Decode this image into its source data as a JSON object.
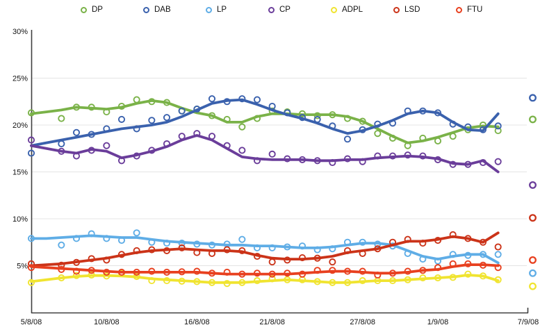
{
  "chart_data": {
    "type": "line",
    "title": "",
    "xlabel": "",
    "ylabel": "",
    "y_unit": "%",
    "ylim": [
      0,
      30
    ],
    "y_ticks": [
      30,
      25,
      20,
      15,
      10,
      5
    ],
    "grid": true,
    "grid_ticks": [
      25,
      20,
      15,
      10,
      5
    ],
    "legend_position": "top",
    "x_axis": {
      "tick_labels": [
        "5/8/08",
        "10/8/08",
        "16/8/08",
        "21/8/08",
        "27/8/08",
        "1/9/08",
        "7/9/08"
      ],
      "tick_days": [
        0,
        5,
        11,
        16,
        22,
        27,
        33
      ],
      "range_days": [
        0,
        33
      ],
      "final_point_day": 33.3
    },
    "marker_style": "hollow-circle",
    "series": [
      {
        "name": "DP",
        "color": "#7ab248",
        "polls": [
          21.3,
          null,
          20.7,
          21.9,
          21.9,
          21.4,
          22.0,
          22.7,
          22.5,
          22.4,
          21.5,
          21.7,
          21.0,
          20.6,
          19.8,
          20.7,
          21.5,
          21.4,
          21.2,
          21.0,
          21.1,
          20.7,
          20.4,
          19.1,
          18.6,
          17.8,
          18.6,
          18.3,
          18.8,
          19.5,
          20.0,
          19.4
        ],
        "trend": [
          21.2,
          21.4,
          21.6,
          21.9,
          21.8,
          21.7,
          21.9,
          22.3,
          22.6,
          22.4,
          21.8,
          21.3,
          21.0,
          20.3,
          20.3,
          20.9,
          21.2,
          21.2,
          21.1,
          21.1,
          21.1,
          20.9,
          20.4,
          19.6,
          18.8,
          18.1,
          18.3,
          18.7,
          19.2,
          19.7,
          19.9,
          19.8
        ],
        "final": 20.6
      },
      {
        "name": "DAB",
        "color": "#3a61ad",
        "polls": [
          17.0,
          null,
          18.0,
          19.2,
          19.0,
          19.6,
          20.6,
          19.6,
          20.5,
          20.8,
          21.5,
          21.7,
          22.8,
          22.5,
          22.8,
          22.7,
          22.0,
          21.3,
          20.8,
          20.6,
          19.9,
          18.5,
          19.5,
          20.1,
          20.2,
          21.5,
          21.5,
          21.3,
          20.1,
          19.8,
          19.5,
          19.9
        ],
        "trend": [
          17.8,
          18.1,
          18.4,
          18.7,
          19.0,
          19.3,
          19.6,
          19.8,
          20.0,
          20.3,
          20.9,
          21.6,
          22.3,
          22.6,
          22.7,
          22.2,
          21.6,
          21.1,
          20.7,
          20.2,
          19.6,
          19.1,
          19.4,
          19.9,
          20.5,
          21.2,
          21.5,
          21.3,
          20.3,
          19.5,
          19.4,
          21.2
        ],
        "final": 22.9
      },
      {
        "name": "LP",
        "color": "#5fade6",
        "polls": [
          7.9,
          null,
          7.2,
          7.9,
          8.4,
          7.9,
          7.7,
          8.5,
          7.5,
          7.4,
          7.4,
          7.3,
          7.2,
          7.3,
          7.8,
          6.9,
          6.9,
          7.0,
          7.1,
          6.7,
          6.8,
          7.5,
          7.5,
          7.3,
          7.1,
          6.3,
          5.7,
          5.5,
          6.2,
          6.1,
          6.2,
          6.2
        ],
        "trend": [
          7.9,
          7.9,
          8.0,
          8.1,
          8.2,
          8.1,
          8.0,
          8.0,
          7.8,
          7.6,
          7.5,
          7.4,
          7.3,
          7.2,
          7.2,
          7.1,
          7.1,
          7.0,
          6.9,
          6.9,
          7.0,
          7.2,
          7.4,
          7.4,
          7.2,
          6.6,
          6.0,
          5.7,
          6.0,
          6.2,
          6.2,
          5.3
        ],
        "final": 4.2
      },
      {
        "name": "CP",
        "color": "#6a3d9a",
        "polls": [
          18.4,
          null,
          17.2,
          16.7,
          17.3,
          17.8,
          16.2,
          16.7,
          17.3,
          18.0,
          18.8,
          19.1,
          18.8,
          17.8,
          17.3,
          16.2,
          16.9,
          16.4,
          16.3,
          16.2,
          16.0,
          16.4,
          16.1,
          16.7,
          16.7,
          16.8,
          16.7,
          16.3,
          15.8,
          15.8,
          16.0,
          16.1
        ],
        "trend": [
          17.8,
          17.5,
          17.2,
          17.0,
          17.4,
          17.2,
          16.5,
          16.8,
          17.2,
          17.7,
          18.4,
          18.9,
          18.4,
          17.5,
          16.6,
          16.4,
          16.3,
          16.3,
          16.3,
          16.2,
          16.2,
          16.3,
          16.3,
          16.5,
          16.6,
          16.7,
          16.6,
          16.4,
          15.9,
          15.8,
          16.2,
          15.0
        ],
        "final": 13.6
      },
      {
        "name": "ADPL",
        "color": "#f0e430",
        "polls": [
          3.2,
          null,
          3.7,
          3.95,
          4.0,
          3.9,
          4.2,
          3.85,
          3.4,
          3.4,
          3.35,
          3.3,
          3.2,
          3.1,
          3.2,
          3.4,
          3.6,
          3.5,
          3.5,
          3.3,
          3.2,
          3.2,
          3.4,
          3.4,
          3.4,
          3.5,
          3.7,
          3.7,
          3.75,
          4.1,
          3.9,
          3.5
        ],
        "trend": [
          3.3,
          3.5,
          3.7,
          3.85,
          3.95,
          3.95,
          3.9,
          3.8,
          3.6,
          3.5,
          3.4,
          3.3,
          3.2,
          3.2,
          3.2,
          3.3,
          3.4,
          3.5,
          3.4,
          3.3,
          3.2,
          3.2,
          3.3,
          3.4,
          3.4,
          3.5,
          3.6,
          3.7,
          3.8,
          4.0,
          3.9,
          3.4
        ],
        "final": 2.8
      },
      {
        "name": "LSD",
        "color": "#cb3318",
        "polls": [
          5.2,
          null,
          5.05,
          5.35,
          5.75,
          5.6,
          6.2,
          6.6,
          6.7,
          6.6,
          6.9,
          6.4,
          6.3,
          6.7,
          6.6,
          6.0,
          5.4,
          5.6,
          5.85,
          5.8,
          5.4,
          6.6,
          6.3,
          6.8,
          7.5,
          7.8,
          7.4,
          7.7,
          8.3,
          7.9,
          7.5,
          7.0
        ],
        "trend": [
          5.0,
          5.1,
          5.2,
          5.4,
          5.6,
          5.8,
          6.1,
          6.4,
          6.6,
          6.7,
          6.8,
          6.7,
          6.6,
          6.6,
          6.5,
          6.1,
          5.8,
          5.7,
          5.7,
          5.8,
          6.0,
          6.4,
          6.6,
          6.8,
          7.2,
          7.6,
          7.6,
          7.8,
          8.1,
          7.9,
          7.5,
          8.5
        ],
        "final": 10.1
      },
      {
        "name": "FTU",
        "color": "#e8401f",
        "polls": [
          4.8,
          null,
          4.6,
          4.4,
          4.5,
          4.3,
          4.3,
          4.3,
          4.4,
          4.3,
          4.35,
          4.4,
          4.2,
          4.3,
          4.1,
          4.2,
          4.1,
          4.2,
          4.1,
          4.5,
          4.5,
          4.4,
          4.4,
          4.0,
          4.2,
          4.4,
          4.5,
          4.8,
          5.2,
          5.2,
          5.05,
          4.8
        ],
        "trend": [
          4.9,
          4.8,
          4.7,
          4.6,
          4.5,
          4.4,
          4.3,
          4.3,
          4.3,
          4.3,
          4.3,
          4.3,
          4.2,
          4.1,
          4.1,
          4.1,
          4.1,
          4.1,
          4.2,
          4.3,
          4.4,
          4.4,
          4.3,
          4.2,
          4.2,
          4.3,
          4.5,
          4.6,
          4.9,
          5.1,
          5.1,
          5.0
        ],
        "final": 5.6
      }
    ],
    "colors": {
      "background": "#ffffff",
      "grid": "#e4e4e4",
      "axis": "#3f3f3f",
      "label_text": "#111111"
    }
  }
}
